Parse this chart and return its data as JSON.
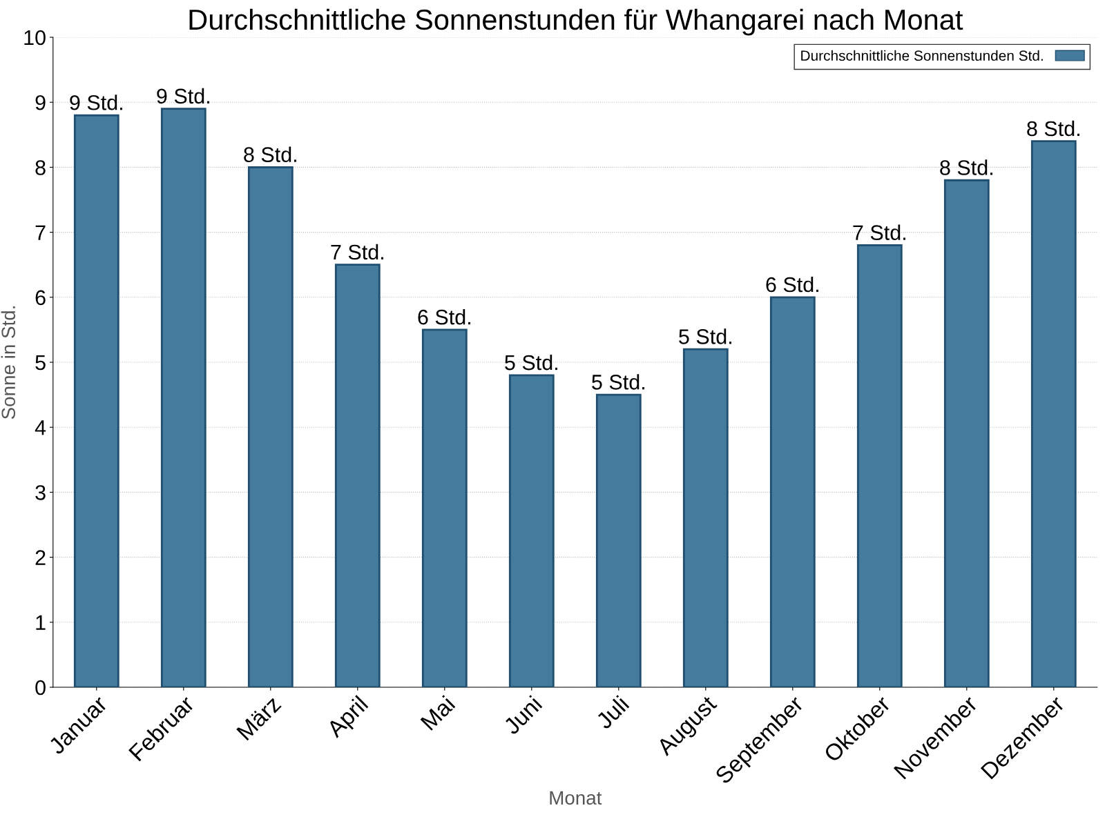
{
  "chart_data": {
    "type": "bar",
    "title": "Durchschnittliche Sonnenstunden für Whangarei nach Monat",
    "xlabel": "Monat",
    "ylabel": "Sonne in Std.",
    "categories": [
      "Januar",
      "Februar",
      "März",
      "April",
      "Mai",
      "Juni",
      "Juli",
      "August",
      "September",
      "Oktober",
      "November",
      "Dezember"
    ],
    "series": [
      {
        "name": "Durchschnittliche Sonnenstunden Std.",
        "color": "#457b9d",
        "values": [
          8.8,
          8.9,
          8.0,
          6.5,
          5.5,
          4.8,
          4.5,
          5.2,
          6.0,
          6.8,
          7.8,
          8.4
        ],
        "value_labels": [
          "9 Std.",
          "9 Std.",
          "8 Std.",
          "7 Std.",
          "6 Std.",
          "5 Std.",
          "5 Std.",
          "5 Std.",
          "6 Std.",
          "7 Std.",
          "8 Std.",
          "8 Std."
        ]
      }
    ],
    "ylim": [
      0,
      10
    ],
    "yticks": [
      0,
      1,
      2,
      3,
      4,
      5,
      6,
      7,
      8,
      9,
      10
    ],
    "grid": "y",
    "legend": "top right"
  }
}
